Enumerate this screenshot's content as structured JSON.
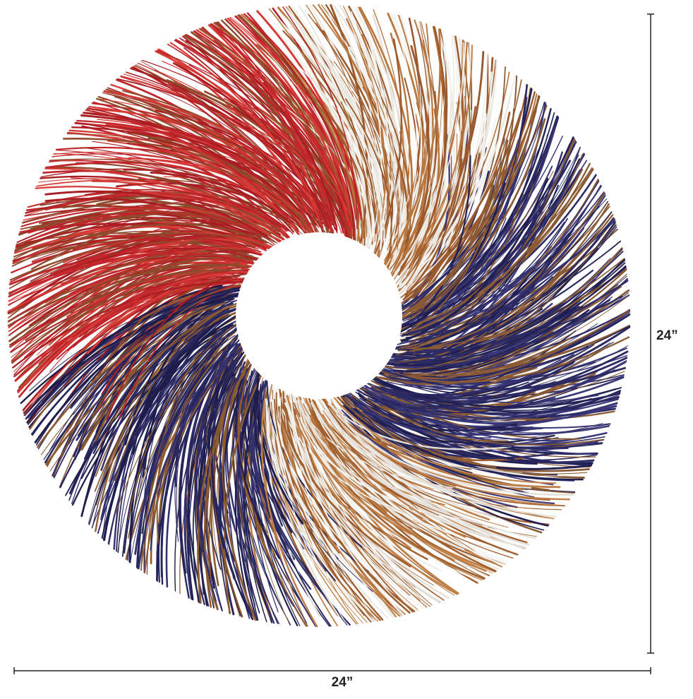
{
  "dimensions": {
    "height_label": "24”",
    "width_label": "24”"
  }
}
